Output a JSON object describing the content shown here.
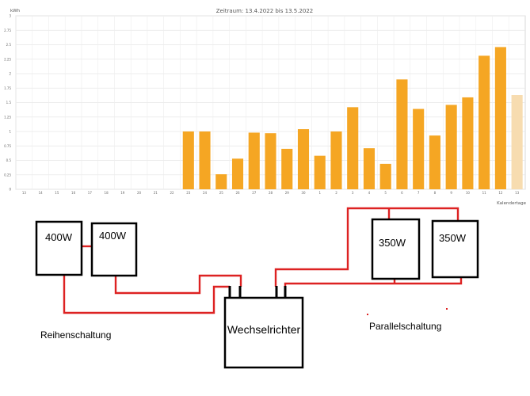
{
  "chart_data": {
    "type": "bar",
    "title": "Zeitraum: 13.4.2022 bis 13.5.2022",
    "ylabel": "kWh",
    "xlabel": "Kalendertage",
    "ylim": [
      0,
      3
    ],
    "yticks": [
      "0",
      "0.25",
      "0.5",
      "0.75",
      "1",
      "1.25",
      "1.5",
      "1.75",
      "2",
      "2.25",
      "2.5",
      "2.75",
      "3"
    ],
    "categories": [
      "13",
      "14",
      "15",
      "16",
      "17",
      "18",
      "19",
      "20",
      "21",
      "22",
      "23",
      "24",
      "25",
      "26",
      "27",
      "28",
      "29",
      "30",
      "1",
      "2",
      "3",
      "4",
      "5",
      "6",
      "7",
      "8",
      "9",
      "10",
      "11",
      "12",
      "13"
    ],
    "values": [
      0,
      0,
      0,
      0,
      0,
      0,
      0,
      0,
      0,
      0,
      1.0,
      1.0,
      0.26,
      0.53,
      0.98,
      0.97,
      0.7,
      1.04,
      0.58,
      1.0,
      1.42,
      0.71,
      0.44,
      1.9,
      1.39,
      0.93,
      1.46,
      1.59,
      2.31,
      2.46,
      1.63
    ],
    "highlight_last": true,
    "bar_color": "#f5a623",
    "last_bar_color": "#f7dcb0",
    "grid": true
  },
  "diagram": {
    "panel_a_label": "400W",
    "panel_b_label": "400W",
    "panel_c_label": "350W",
    "panel_d_label": "350W",
    "inverter_label": "Wechselrichter",
    "series_label": "Reihenschaltung",
    "parallel_label": "Parallelschaltung",
    "wire_color": "#dd2222"
  }
}
